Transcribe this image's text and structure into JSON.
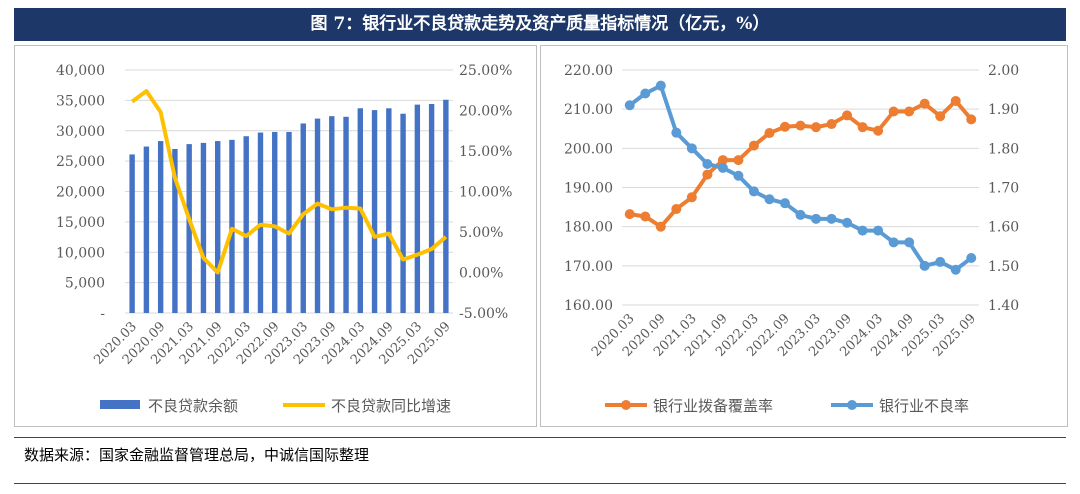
{
  "title": "图 7：银行业不良贷款走势及资产质量指标情况（亿元，%）",
  "source": "数据来源：国家金融监督管理总局，中诚信国际整理",
  "chart_data": [
    {
      "type": "bar+line",
      "categories": [
        "2020.03",
        "2020.06",
        "2020.09",
        "2020.12",
        "2021.03",
        "2021.06",
        "2021.09",
        "2021.12",
        "2022.03",
        "2022.06",
        "2022.09",
        "2022.12",
        "2023.03",
        "2023.06",
        "2023.09",
        "2023.12",
        "2024.03",
        "2024.06",
        "2024.09",
        "2024.12",
        "2025.03",
        "2025.06",
        "2025.09"
      ],
      "x_tick_labels": [
        "2020.03",
        "2020.09",
        "2021.03",
        "2021.09",
        "2022.03",
        "2022.09",
        "2023.03",
        "2023.09",
        "2024.03",
        "2024.09",
        "2025.03",
        "2025.09"
      ],
      "series": [
        {
          "name": "不良贷款余额",
          "axis": "left",
          "kind": "bar",
          "color": "#4472c4",
          "values": [
            26100,
            27400,
            28300,
            27000,
            27800,
            28000,
            28300,
            28500,
            29100,
            29700,
            29800,
            29800,
            31200,
            32000,
            32400,
            32300,
            33700,
            33400,
            33700,
            32800,
            34300,
            34400,
            35100
          ]
        },
        {
          "name": "不良贷款同比增速",
          "axis": "right",
          "kind": "line",
          "color": "#ffc000",
          "values": [
            21.1,
            22.4,
            19.8,
            11.7,
            6.6,
            1.8,
            0.0,
            5.4,
            4.5,
            5.9,
            5.7,
            4.8,
            7.2,
            8.5,
            7.8,
            8.0,
            7.9,
            4.4,
            4.8,
            1.6,
            2.2,
            2.9,
            4.4
          ]
        }
      ],
      "ylim": [
        0,
        40000
      ],
      "y2lim": [
        -5,
        25
      ],
      "y_ticks": [
        "-",
        "5,000",
        "10,000",
        "15,000",
        "20,000",
        "25,000",
        "30,000",
        "35,000",
        "40,000"
      ],
      "y2_ticks": [
        "-5.00%",
        "0.00%",
        "5.00%",
        "10.00%",
        "15.00%",
        "20.00%",
        "25.00%"
      ],
      "legend": "bottom"
    },
    {
      "type": "line",
      "categories": [
        "2020.03",
        "2020.06",
        "2020.09",
        "2020.12",
        "2021.03",
        "2021.06",
        "2021.09",
        "2021.12",
        "2022.03",
        "2022.06",
        "2022.09",
        "2022.12",
        "2023.03",
        "2023.06",
        "2023.09",
        "2023.12",
        "2024.03",
        "2024.06",
        "2024.09",
        "2024.12",
        "2025.03",
        "2025.06",
        "2025.09"
      ],
      "x_tick_labels": [
        "2020.03",
        "2020.09",
        "2021.03",
        "2021.09",
        "2022.03",
        "2022.09",
        "2023.03",
        "2023.09",
        "2024.03",
        "2024.09",
        "2025.03",
        "2025.09"
      ],
      "series": [
        {
          "name": "银行业拨备覆盖率",
          "axis": "left",
          "color": "#ed7d31",
          "values": [
            183.2,
            182.6,
            180.0,
            184.5,
            187.5,
            193.3,
            197.0,
            197.0,
            200.7,
            203.9,
            205.5,
            205.8,
            205.4,
            206.2,
            208.4,
            205.4,
            204.5,
            209.4,
            209.4,
            211.4,
            208.2,
            212.1,
            207.4
          ]
        },
        {
          "name": "银行业不良率",
          "axis": "right",
          "color": "#5b9bd5",
          "values": [
            1.91,
            1.94,
            1.96,
            1.84,
            1.8,
            1.76,
            1.75,
            1.73,
            1.69,
            1.67,
            1.66,
            1.63,
            1.62,
            1.62,
            1.61,
            1.59,
            1.59,
            1.56,
            1.56,
            1.5,
            1.51,
            1.49,
            1.52
          ]
        }
      ],
      "ylim": [
        160,
        220
      ],
      "y2lim": [
        1.4,
        2.0
      ],
      "y_ticks": [
        "160.00",
        "170.00",
        "180.00",
        "190.00",
        "200.00",
        "210.00",
        "220.00"
      ],
      "y2_ticks": [
        "1.40",
        "1.50",
        "1.60",
        "1.70",
        "1.80",
        "1.90",
        "2.00"
      ],
      "legend": "bottom"
    }
  ]
}
